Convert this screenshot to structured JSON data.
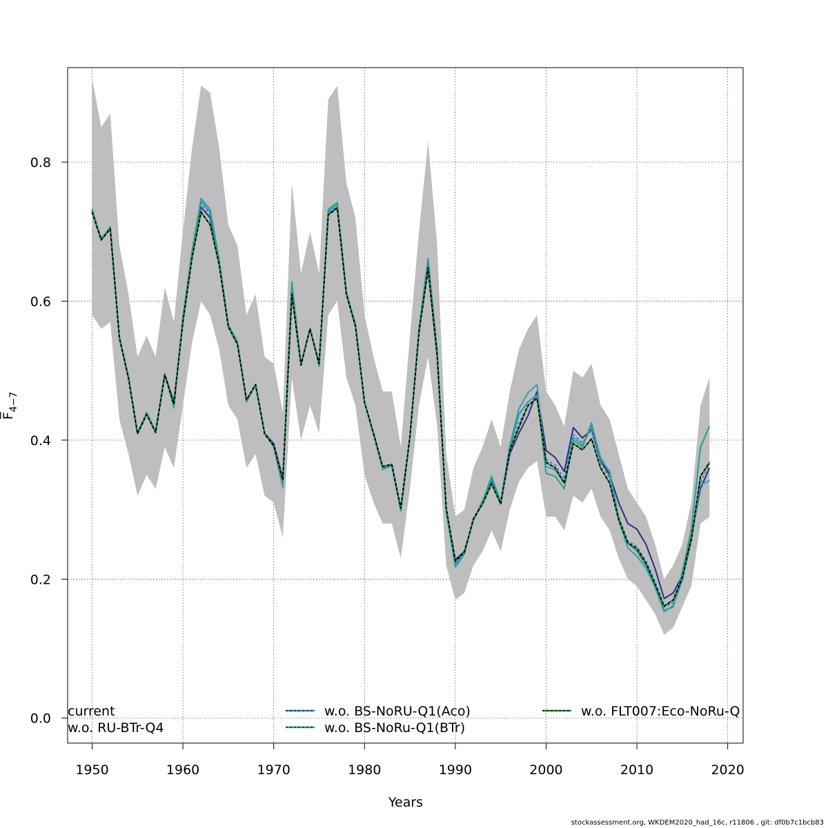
{
  "chart_data": {
    "type": "line",
    "xlabel": "Years",
    "ylabel": "F̅",
    "ylabel_sub": "4−7",
    "xlim": [
      1947.3,
      2021.7
    ],
    "ylim": [
      -0.036,
      0.936
    ],
    "xticks": [
      1950,
      1960,
      1970,
      1980,
      1990,
      2000,
      2010,
      2020
    ],
    "yticks": [
      0.0,
      0.2,
      0.4,
      0.6,
      0.8
    ],
    "grid": true,
    "legend_position": "bottom",
    "x": [
      1950,
      1951,
      1952,
      1953,
      1954,
      1955,
      1956,
      1957,
      1958,
      1959,
      1960,
      1961,
      1962,
      1963,
      1964,
      1965,
      1966,
      1967,
      1968,
      1969,
      1970,
      1971,
      1972,
      1973,
      1974,
      1975,
      1976,
      1977,
      1978,
      1979,
      1980,
      1981,
      1982,
      1983,
      1984,
      1985,
      1986,
      1987,
      1988,
      1989,
      1990,
      1991,
      1992,
      1993,
      1994,
      1995,
      1996,
      1997,
      1998,
      1999,
      2000,
      2001,
      2002,
      2003,
      2004,
      2005,
      2006,
      2007,
      2008,
      2009,
      2010,
      2011,
      2012,
      2013,
      2014,
      2015,
      2016,
      2017,
      2018
    ],
    "band": {
      "upper": [
        0.92,
        0.85,
        0.87,
        0.68,
        0.61,
        0.52,
        0.55,
        0.52,
        0.62,
        0.57,
        0.7,
        0.82,
        0.91,
        0.9,
        0.82,
        0.71,
        0.68,
        0.58,
        0.61,
        0.52,
        0.51,
        0.44,
        0.77,
        0.64,
        0.7,
        0.64,
        0.89,
        0.91,
        0.77,
        0.72,
        0.58,
        0.52,
        0.47,
        0.47,
        0.39,
        0.55,
        0.7,
        0.83,
        0.68,
        0.38,
        0.29,
        0.3,
        0.36,
        0.39,
        0.43,
        0.39,
        0.47,
        0.53,
        0.56,
        0.58,
        0.47,
        0.45,
        0.42,
        0.5,
        0.49,
        0.51,
        0.45,
        0.43,
        0.38,
        0.33,
        0.31,
        0.29,
        0.25,
        0.2,
        0.22,
        0.25,
        0.31,
        0.45,
        0.49
      ],
      "lower": [
        0.58,
        0.56,
        0.57,
        0.43,
        0.38,
        0.32,
        0.35,
        0.33,
        0.39,
        0.36,
        0.45,
        0.54,
        0.6,
        0.58,
        0.53,
        0.45,
        0.43,
        0.36,
        0.38,
        0.32,
        0.31,
        0.26,
        0.49,
        0.4,
        0.45,
        0.41,
        0.58,
        0.6,
        0.49,
        0.45,
        0.35,
        0.31,
        0.28,
        0.28,
        0.23,
        0.33,
        0.45,
        0.52,
        0.42,
        0.22,
        0.17,
        0.18,
        0.22,
        0.24,
        0.27,
        0.24,
        0.3,
        0.34,
        0.36,
        0.37,
        0.29,
        0.29,
        0.27,
        0.32,
        0.31,
        0.33,
        0.29,
        0.27,
        0.23,
        0.2,
        0.19,
        0.17,
        0.15,
        0.12,
        0.13,
        0.16,
        0.19,
        0.28,
        0.29
      ]
    },
    "series": [
      {
        "name": "current",
        "color": "#2c2c85",
        "dash": "",
        "values": [
          0.73,
          0.69,
          0.705,
          0.548,
          0.49,
          0.41,
          0.438,
          0.412,
          0.495,
          0.455,
          0.57,
          0.665,
          0.735,
          0.72,
          0.655,
          0.565,
          0.54,
          0.458,
          0.48,
          0.41,
          0.395,
          0.345,
          0.61,
          0.51,
          0.56,
          0.51,
          0.725,
          0.735,
          0.61,
          0.565,
          0.455,
          0.41,
          0.362,
          0.365,
          0.3,
          0.405,
          0.555,
          0.645,
          0.52,
          0.3,
          0.228,
          0.24,
          0.285,
          0.31,
          0.342,
          0.31,
          0.38,
          0.41,
          0.435,
          0.47,
          0.385,
          0.375,
          0.355,
          0.418,
          0.403,
          0.415,
          0.37,
          0.35,
          0.31,
          0.28,
          0.272,
          0.25,
          0.215,
          0.172,
          0.18,
          0.205,
          0.26,
          0.33,
          0.36
        ]
      },
      {
        "name": "w.o. RU-BTr-Q4",
        "color": "#3b98b8",
        "dash": "",
        "values": [
          0.733,
          0.688,
          0.707,
          0.549,
          0.492,
          0.411,
          0.44,
          0.413,
          0.496,
          0.446,
          0.578,
          0.672,
          0.748,
          0.732,
          0.66,
          0.566,
          0.542,
          0.455,
          0.479,
          0.41,
          0.39,
          0.332,
          0.628,
          0.51,
          0.561,
          0.506,
          0.732,
          0.742,
          0.612,
          0.567,
          0.455,
          0.408,
          0.358,
          0.363,
          0.298,
          0.403,
          0.561,
          0.662,
          0.53,
          0.296,
          0.217,
          0.236,
          0.286,
          0.312,
          0.348,
          0.312,
          0.392,
          0.445,
          0.468,
          0.48,
          0.362,
          0.357,
          0.338,
          0.404,
          0.393,
          0.42,
          0.375,
          0.353,
          0.285,
          0.245,
          0.233,
          0.216,
          0.188,
          0.153,
          0.162,
          0.198,
          0.256,
          0.335,
          0.342
        ]
      },
      {
        "name": "w.o. BS-NoRU-Q1(Aco)",
        "color": "#2e86c1",
        "dash": "4 3",
        "values": [
          0.731,
          0.689,
          0.706,
          0.548,
          0.491,
          0.41,
          0.439,
          0.412,
          0.495,
          0.453,
          0.572,
          0.667,
          0.74,
          0.724,
          0.656,
          0.565,
          0.541,
          0.457,
          0.48,
          0.41,
          0.393,
          0.341,
          0.615,
          0.51,
          0.56,
          0.509,
          0.727,
          0.737,
          0.611,
          0.566,
          0.455,
          0.409,
          0.361,
          0.364,
          0.299,
          0.404,
          0.557,
          0.65,
          0.523,
          0.299,
          0.224,
          0.238,
          0.285,
          0.311,
          0.345,
          0.311,
          0.384,
          0.425,
          0.448,
          0.462,
          0.372,
          0.364,
          0.344,
          0.408,
          0.396,
          0.415,
          0.368,
          0.345,
          0.29,
          0.255,
          0.247,
          0.226,
          0.196,
          0.16,
          0.166,
          0.2,
          0.257,
          0.338,
          0.366
        ]
      },
      {
        "name": "w.o. BS-NoRu-Q1(BTr)",
        "color": "#2a9d8f",
        "dash": "",
        "values": [
          0.732,
          0.689,
          0.707,
          0.548,
          0.491,
          0.41,
          0.439,
          0.412,
          0.494,
          0.45,
          0.574,
          0.67,
          0.744,
          0.728,
          0.658,
          0.566,
          0.541,
          0.456,
          0.48,
          0.41,
          0.392,
          0.337,
          0.622,
          0.51,
          0.561,
          0.508,
          0.73,
          0.74,
          0.612,
          0.567,
          0.455,
          0.409,
          0.36,
          0.364,
          0.299,
          0.404,
          0.559,
          0.656,
          0.526,
          0.298,
          0.221,
          0.237,
          0.286,
          0.312,
          0.344,
          0.311,
          0.388,
          0.437,
          0.455,
          0.465,
          0.352,
          0.348,
          0.33,
          0.4,
          0.39,
          0.425,
          0.372,
          0.355,
          0.288,
          0.252,
          0.24,
          0.22,
          0.19,
          0.155,
          0.16,
          0.21,
          0.272,
          0.39,
          0.42
        ]
      },
      {
        "name": "w.o. FLT007:Eco-NoRu-Q",
        "color": "#1a8a3a",
        "dash": "",
        "values": [
          0.728,
          0.688,
          0.704,
          0.547,
          0.489,
          0.409,
          0.437,
          0.411,
          0.494,
          0.452,
          0.57,
          0.662,
          0.728,
          0.71,
          0.652,
          0.563,
          0.538,
          0.458,
          0.48,
          0.409,
          0.392,
          0.343,
          0.61,
          0.508,
          0.56,
          0.51,
          0.724,
          0.734,
          0.61,
          0.564,
          0.454,
          0.409,
          0.362,
          0.365,
          0.302,
          0.405,
          0.555,
          0.648,
          0.522,
          0.302,
          0.226,
          0.239,
          0.287,
          0.308,
          0.337,
          0.308,
          0.385,
          0.418,
          0.45,
          0.46,
          0.368,
          0.36,
          0.338,
          0.395,
          0.386,
          0.402,
          0.36,
          0.338,
          0.285,
          0.252,
          0.244,
          0.223,
          0.193,
          0.161,
          0.17,
          0.202,
          0.258,
          0.348,
          0.368
        ]
      }
    ],
    "overlay_series": [
      {
        "name": "w.o. FLT007:Eco-NoRu-Q",
        "color": "#000000",
        "dash": "4 3",
        "values": [
          0.728,
          0.688,
          0.704,
          0.547,
          0.489,
          0.409,
          0.437,
          0.411,
          0.494,
          0.452,
          0.57,
          0.662,
          0.728,
          0.71,
          0.652,
          0.563,
          0.538,
          0.458,
          0.48,
          0.409,
          0.392,
          0.343,
          0.61,
          0.508,
          0.56,
          0.51,
          0.724,
          0.734,
          0.61,
          0.564,
          0.454,
          0.409,
          0.362,
          0.365,
          0.302,
          0.405,
          0.555,
          0.648,
          0.522,
          0.302,
          0.226,
          0.239,
          0.287,
          0.308,
          0.337,
          0.308,
          0.385,
          0.418,
          0.45,
          0.46,
          0.368,
          0.36,
          0.338,
          0.395,
          0.386,
          0.402,
          0.36,
          0.338,
          0.285,
          0.252,
          0.244,
          0.223,
          0.193,
          0.161,
          0.17,
          0.202,
          0.258,
          0.348,
          0.368
        ]
      }
    ],
    "band_color": "#bebebe"
  },
  "legend": [
    {
      "label": "current",
      "color": "#2c2c85",
      "dash": "",
      "overlay": ""
    },
    {
      "label": "w.o. RU-BTr-Q4",
      "color": "#3b98b8",
      "dash": "",
      "overlay": ""
    },
    {
      "label": "w.o. BS-NoRU-Q1(Aco)",
      "color": "#2e86c1",
      "dash": "",
      "overlay": "#1a1a1a"
    },
    {
      "label": "w.o. BS-NoRu-Q1(BTr)",
      "color": "#2a9d8f",
      "dash": "",
      "overlay": "#1a1a1a"
    },
    {
      "label": "w.o. FLT007:Eco-NoRu-Q",
      "color": "#1a8a3a",
      "dash": "",
      "overlay": "#000000"
    }
  ],
  "footer": "stockassessment.org, WKDEM2020_had_16c, r11806 , git: df0b7c1bcb83"
}
